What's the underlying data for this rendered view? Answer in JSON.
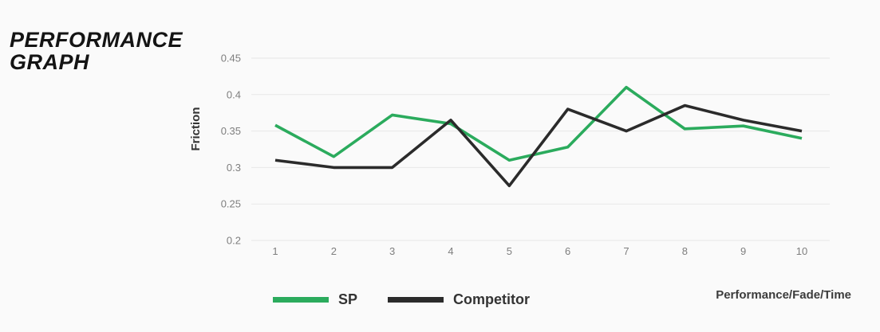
{
  "header": {
    "title_line1": "PERFORMANCE",
    "title_line2": "GRAPH"
  },
  "chart_data": {
    "type": "line",
    "title": "PERFORMANCE GRAPH",
    "xlabel": "Performance/Fade/Time",
    "ylabel": "Friction",
    "categories": [
      "1",
      "2",
      "3",
      "4",
      "5",
      "6",
      "7",
      "8",
      "9",
      "10"
    ],
    "y_ticks": [
      0.45,
      0.4,
      0.35,
      0.3,
      0.25,
      0.2
    ],
    "ylim": [
      0.2,
      0.45
    ],
    "grid": "horizontal",
    "legend_position": "bottom",
    "series": [
      {
        "name": "SP",
        "color": "#2BAB5D",
        "values": [
          0.358,
          0.315,
          0.372,
          0.36,
          0.31,
          0.328,
          0.41,
          0.353,
          0.357,
          0.34
        ]
      },
      {
        "name": "Competitor",
        "color": "#2B2B2B",
        "values": [
          0.31,
          0.3,
          0.3,
          0.365,
          0.275,
          0.38,
          0.35,
          0.385,
          0.365,
          0.35
        ]
      }
    ]
  },
  "colors": {
    "background": "#FAFAFA",
    "gridline": "#E7E7E7",
    "tick_text": "#7E7E7E",
    "title_text": "#141414"
  }
}
